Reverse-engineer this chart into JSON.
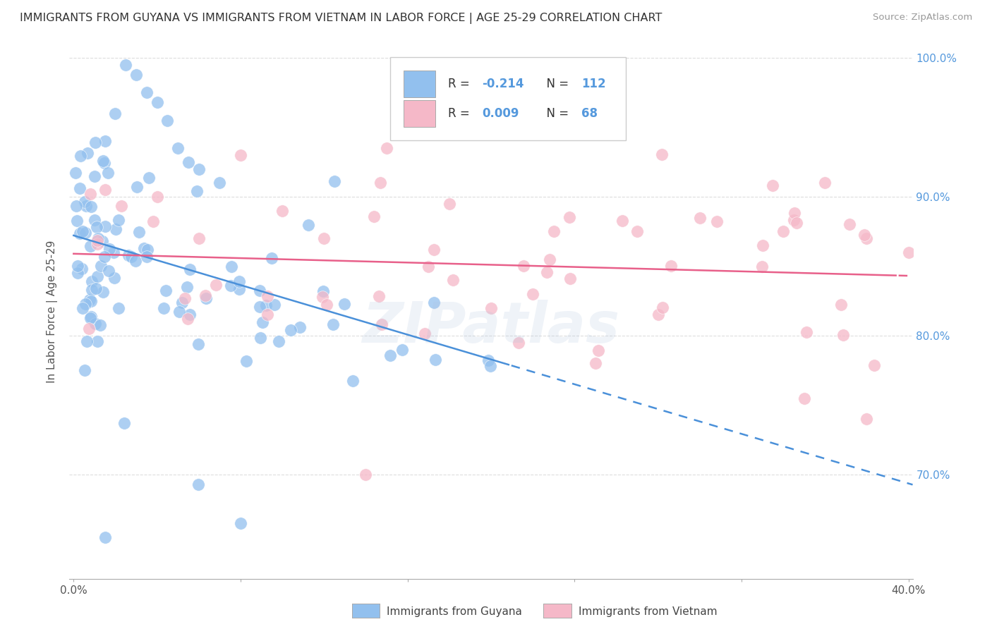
{
  "title": "IMMIGRANTS FROM GUYANA VS IMMIGRANTS FROM VIETNAM IN LABOR FORCE | AGE 25-29 CORRELATION CHART",
  "source_text": "Source: ZipAtlas.com",
  "ylabel": "In Labor Force | Age 25-29",
  "legend_label1": "Immigrants from Guyana",
  "legend_label2": "Immigrants from Vietnam",
  "R1": -0.214,
  "N1": 112,
  "R2": 0.009,
  "N2": 68,
  "xlim": [
    -0.002,
    0.402
  ],
  "ylim": [
    0.625,
    1.01
  ],
  "xtick_vals": [
    0.0,
    0.08,
    0.16,
    0.24,
    0.32,
    0.4
  ],
  "ytick_vals": [
    0.7,
    0.8,
    0.9,
    1.0
  ],
  "ytick_labels": [
    "70.0%",
    "80.0%",
    "90.0%",
    "100.0%"
  ],
  "xtick_labels": [
    "0.0%",
    "",
    "",
    "",
    "",
    "40.0%"
  ],
  "color_guyana": "#92c0ee",
  "color_vietnam": "#f5b8c8",
  "color_line_guyana": "#4a90d9",
  "color_line_vietnam": "#e8608a",
  "background_color": "#ffffff",
  "watermark": "ZIPatlas",
  "grid_color": "#dddddd",
  "right_ytick_color": "#5599dd"
}
